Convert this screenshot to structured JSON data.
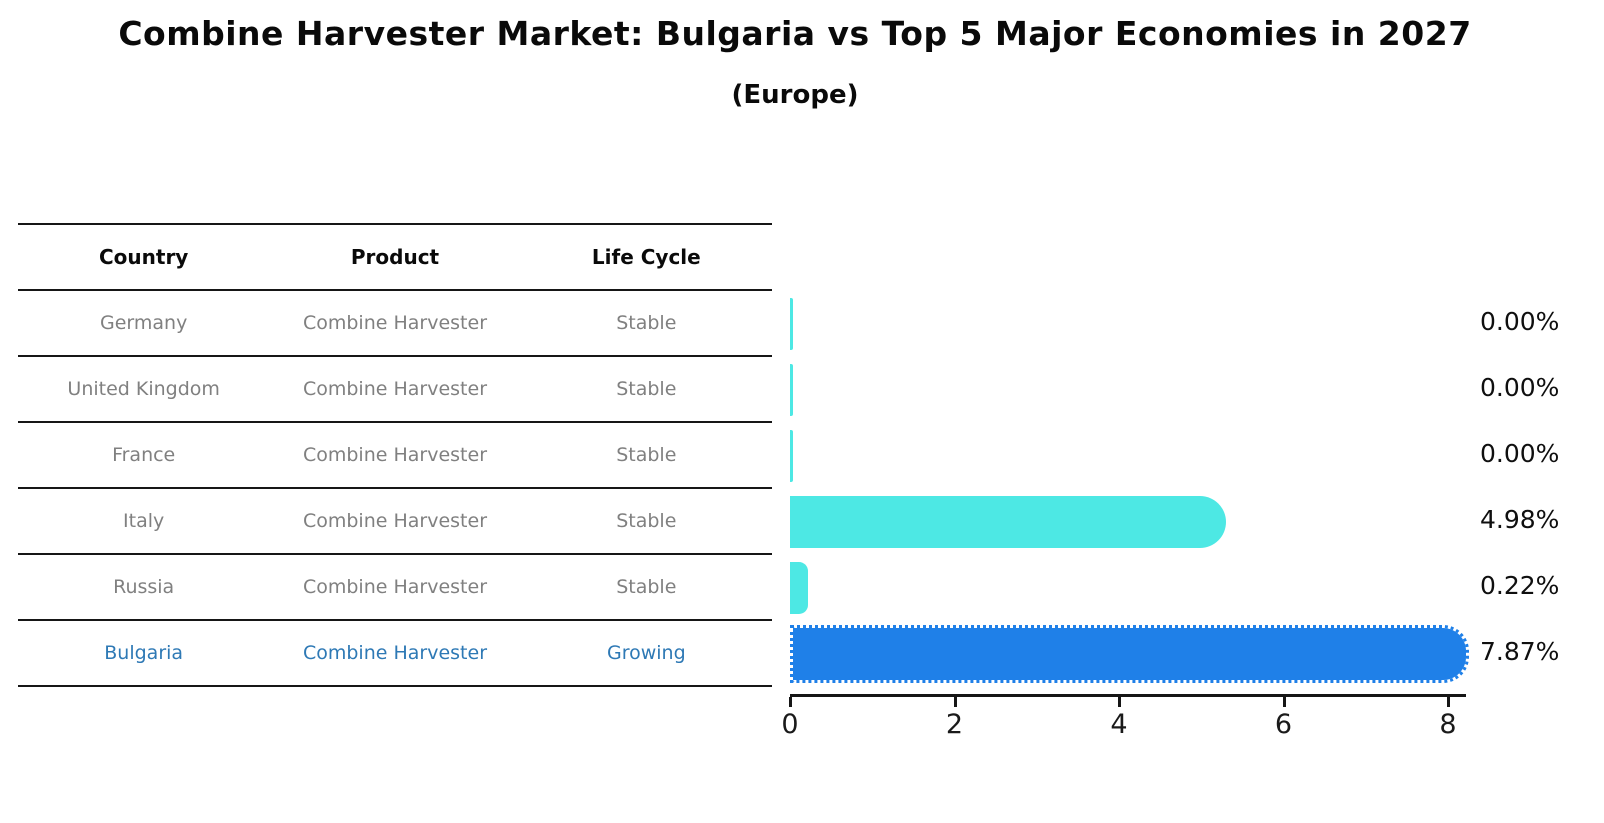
{
  "chart": {
    "title": "Combine Harvester Market: Bulgaria vs Top 5 Major Economies in 2027",
    "subtitle": "(Europe)"
  },
  "table": {
    "headers": [
      "Country",
      "Product",
      "Life Cycle"
    ],
    "rows": [
      [
        "Germany",
        "Combine Harvester",
        "Stable"
      ],
      [
        "United Kingdom",
        "Combine Harvester",
        "Stable"
      ],
      [
        "France",
        "Combine Harvester",
        "Stable"
      ],
      [
        "Italy",
        "Combine Harvester",
        "Stable"
      ],
      [
        "Russia",
        "Combine Harvester",
        "Stable"
      ],
      [
        "Bulgaria",
        "Combine Harvester",
        "Growing"
      ]
    ]
  },
  "chart_data": {
    "type": "bar",
    "orientation": "horizontal",
    "title": "Combine Harvester Market: Bulgaria vs Top 5 Major Economies in 2027",
    "subtitle": "(Europe)",
    "categories": [
      "Germany",
      "United Kingdom",
      "France",
      "Italy",
      "Russia",
      "Bulgaria"
    ],
    "values": [
      0.0,
      0.0,
      0.0,
      4.98,
      0.22,
      7.87
    ],
    "value_labels": [
      "0.00%",
      "0.00%",
      "0.00%",
      "4.98%",
      "0.22%",
      "7.87%"
    ],
    "x_ticks": [
      0,
      2,
      4,
      6,
      8
    ],
    "xlim": [
      0,
      8.2
    ],
    "grid": false,
    "legend": false,
    "highlight_category": "Bulgaria",
    "bar_color_default": "#4de8e4",
    "bar_color_highlight": "#1f80e8",
    "row_text_color_default": "#808080",
    "row_text_color_highlight": "#2e79b5",
    "highlight_border_style": "dotted"
  }
}
